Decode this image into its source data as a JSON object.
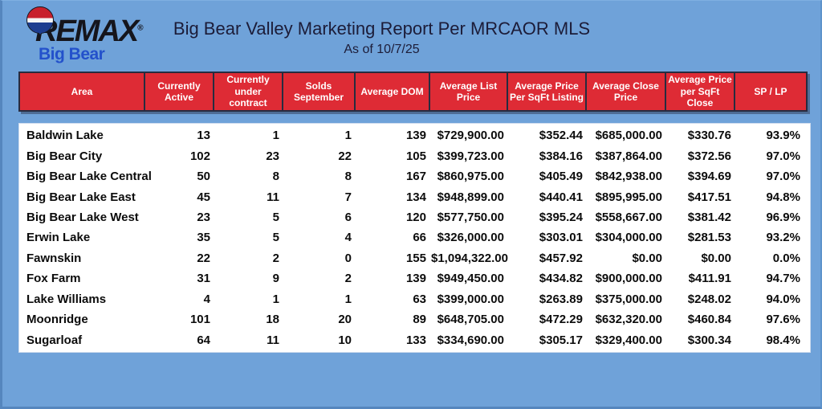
{
  "page": {
    "background_color": "#6FA2D9",
    "panel_color": "#FFFFFF"
  },
  "logo": {
    "balloon_icon": "remax-balloon-icon",
    "balloon_colors": {
      "top": "#C8202C",
      "middle": "#F4F4F4",
      "bottom": "#1D3D8F"
    },
    "brand": "REMAX",
    "registered_mark": "®",
    "sub_brand": "Big Bear",
    "brand_color": "#15151C",
    "sub_brand_color": "#2351CB"
  },
  "header": {
    "title": "Big Bear Valley Marketing Report Per MRCAOR MLS",
    "subtitle": "As of 10/7/25",
    "text_color": "#1C1C38"
  },
  "table": {
    "header_bg": "#DE2B35",
    "header_text_color": "#FFFFFF",
    "columns": [
      "Area",
      "Currently\nActive",
      "Currently\nunder contract",
      "Solds\nSeptember",
      "Average DOM",
      "Average List\nPrice",
      "Average Price\nPer SqFt Listing",
      "Average Close\nPrice",
      "Average Price\nper SqFt\nClose",
      "SP / LP"
    ],
    "rows": [
      [
        "Baldwin Lake",
        "13",
        "1",
        "1",
        "139",
        "$729,900.00",
        "$352.44",
        "$685,000.00",
        "$330.76",
        "93.9%"
      ],
      [
        "Big Bear City",
        "102",
        "23",
        "22",
        "105",
        "$399,723.00",
        "$384.16",
        "$387,864.00",
        "$372.56",
        "97.0%"
      ],
      [
        "Big Bear Lake Central",
        "50",
        "8",
        "8",
        "167",
        "$860,975.00",
        "$405.49",
        "$842,938.00",
        "$394.69",
        "97.0%"
      ],
      [
        "Big Bear Lake East",
        "45",
        "11",
        "7",
        "134",
        "$948,899.00",
        "$440.41",
        "$895,995.00",
        "$417.51",
        "94.8%"
      ],
      [
        "Big Bear Lake West",
        "23",
        "5",
        "6",
        "120",
        "$577,750.00",
        "$395.24",
        "$558,667.00",
        "$381.42",
        "96.9%"
      ],
      [
        "Erwin Lake",
        "35",
        "5",
        "4",
        "66",
        "$326,000.00",
        "$303.01",
        "$304,000.00",
        "$281.53",
        "93.2%"
      ],
      [
        "Fawnskin",
        "22",
        "2",
        "0",
        "155",
        "$1,094,322.00",
        "$457.92",
        "$0.00",
        "$0.00",
        "0.0%"
      ],
      [
        "Fox Farm",
        "31",
        "9",
        "2",
        "139",
        "$949,450.00",
        "$434.82",
        "$900,000.00",
        "$411.91",
        "94.7%"
      ],
      [
        "Lake Williams",
        "4",
        "1",
        "1",
        "63",
        "$399,000.00",
        "$263.89",
        "$375,000.00",
        "$248.02",
        "94.0%"
      ],
      [
        "Moonridge",
        "101",
        "18",
        "20",
        "89",
        "$648,705.00",
        "$472.29",
        "$632,320.00",
        "$460.84",
        "97.6%"
      ],
      [
        "Sugarloaf",
        "64",
        "11",
        "10",
        "133",
        "$334,690.00",
        "$305.17",
        "$329,400.00",
        "$300.34",
        "98.4%"
      ]
    ]
  }
}
